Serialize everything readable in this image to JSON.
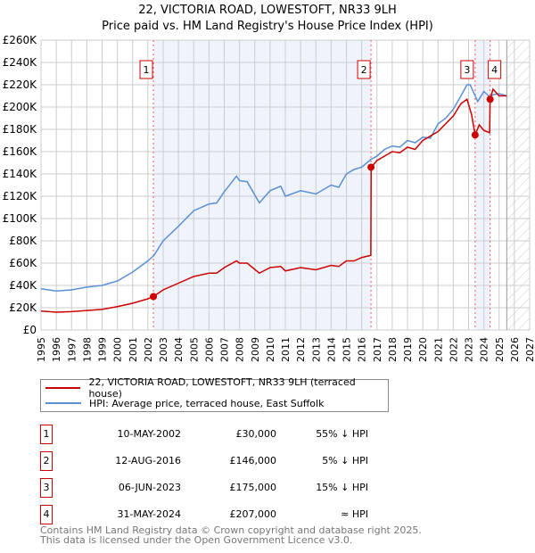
{
  "chart_data": {
    "type": "line",
    "title": "22, VICTORIA ROAD, LOWESTOFT, NR33 9LH",
    "subtitle": "Price paid vs. HM Land Registry's House Price Index (HPI)",
    "xlim": [
      1995,
      2027
    ],
    "ylim": [
      0,
      260000
    ],
    "y_ticks": [
      "£0",
      "£20K",
      "£40K",
      "£60K",
      "£80K",
      "£100K",
      "£120K",
      "£140K",
      "£160K",
      "£180K",
      "£200K",
      "£220K",
      "£240K",
      "£260K"
    ],
    "x_ticks": [
      "1995",
      "1996",
      "1997",
      "1998",
      "1999",
      "2000",
      "2001",
      "2002",
      "2003",
      "2004",
      "2005",
      "2006",
      "2007",
      "2008",
      "2009",
      "2010",
      "2011",
      "2012",
      "2013",
      "2014",
      "2015",
      "2016",
      "2017",
      "2018",
      "2019",
      "2020",
      "2021",
      "2022",
      "2023",
      "2024",
      "2025",
      "2026",
      "2027"
    ],
    "grid": true,
    "forecast_hatch_from": 2025.5,
    "series": [
      {
        "name": "22, VICTORIA ROAD, LOWESTOFT, NR33 9LH (terraced house)",
        "color": "#cc0000",
        "x": [
          1995,
          1996,
          1997,
          1998,
          1999,
          2000,
          2001,
          2002,
          2002.36,
          2003,
          2004,
          2005,
          2006,
          2006.5,
          2007,
          2007.8,
          2008,
          2008.5,
          2009.3,
          2010,
          2010.7,
          2011,
          2012,
          2013,
          2014,
          2014.5,
          2015,
          2015.5,
          2016,
          2016.6,
          2016.62,
          2017,
          2017.5,
          2018,
          2018.5,
          2019,
          2019.5,
          2020,
          2021,
          2022,
          2022.5,
          2022.9,
          2023.2,
          2023.43,
          2023.7,
          2024,
          2024.38,
          2024.41,
          2024.6,
          2025,
          2025.5
        ],
        "y": [
          17,
          16,
          16.5,
          17.5,
          18.5,
          21,
          24,
          28,
          30,
          36,
          42,
          48,
          51,
          51,
          56,
          62,
          60,
          60,
          51,
          56,
          57,
          53,
          56,
          54,
          58,
          57,
          62,
          62,
          65,
          67,
          146,
          152,
          156,
          160,
          159,
          164,
          162,
          170,
          178,
          192,
          203,
          207,
          193,
          175,
          184,
          179,
          177,
          207,
          216,
          210,
          210
        ]
      },
      {
        "name": "HPI: Average price, terraced house, East Suffolk",
        "color": "#5b8fd4",
        "x": [
          1995,
          1996,
          1997,
          1998,
          1999,
          2000,
          2001,
          2002,
          2002.4,
          2003,
          2004,
          2005,
          2006,
          2006.5,
          2007,
          2007.8,
          2008,
          2008.5,
          2009.3,
          2010,
          2010.7,
          2011,
          2012,
          2013,
          2014,
          2014.5,
          2015,
          2015.5,
          2016,
          2016.6,
          2017,
          2017.5,
          2018,
          2018.5,
          2019,
          2019.5,
          2020,
          2020.5,
          2021,
          2021.5,
          2022,
          2022.5,
          2022.9,
          2023.1,
          2023.6,
          2024,
          2024.4,
          2024.6,
          2025,
          2025.5
        ],
        "y": [
          37,
          35,
          36,
          38.5,
          40,
          44,
          52,
          62,
          67,
          80,
          93,
          107,
          113,
          114,
          124,
          138,
          134,
          133,
          114,
          125,
          129,
          120,
          125,
          122,
          130,
          128,
          140,
          144,
          146,
          153,
          156,
          162,
          165,
          164,
          170,
          168,
          173,
          172,
          185,
          190,
          198,
          210,
          220,
          220,
          205,
          214,
          209,
          211,
          212,
          210
        ]
      }
    ],
    "sales": [
      {
        "id": "1",
        "date": "10-MAY-2002",
        "price": "£30,000",
        "hpi": "55% ↓ HPI",
        "x": 2002.36,
        "y": 30
      },
      {
        "id": "2",
        "date": "12-AUG-2016",
        "price": "£146,000",
        "hpi": "5% ↓ HPI",
        "x": 2016.61,
        "y": 146
      },
      {
        "id": "3",
        "date": "06-JUN-2023",
        "price": "£175,000",
        "hpi": "15% ↓ HPI",
        "x": 2023.43,
        "y": 175
      },
      {
        "id": "4",
        "date": "31-MAY-2024",
        "price": "£207,000",
        "hpi": "≈ HPI",
        "x": 2024.41,
        "y": 207
      }
    ]
  },
  "footer": {
    "line1": "Contains HM Land Registry data © Crown copyright and database right 2025.",
    "line2": "This data is licensed under the Open Government Licence v3.0."
  }
}
